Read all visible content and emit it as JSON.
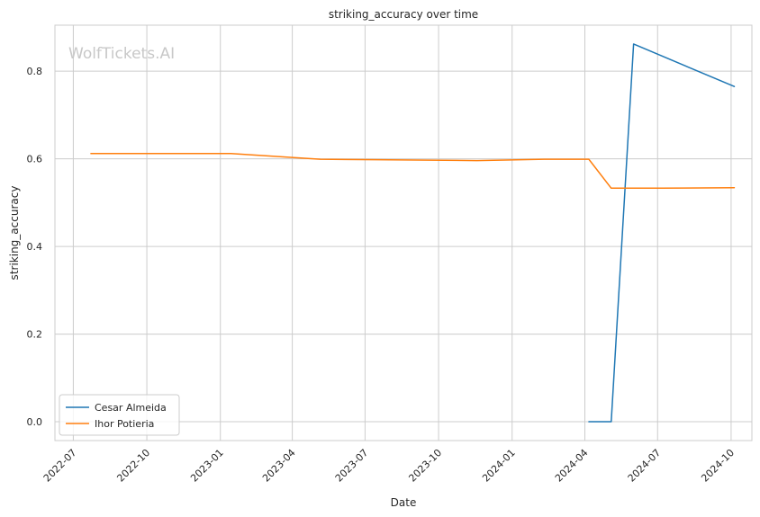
{
  "chart_data": {
    "type": "line",
    "title": "striking_accuracy over time",
    "xlabel": "Date",
    "ylabel": "striking_accuracy",
    "watermark": "WolfTickets.AI",
    "x_tick_labels": [
      "2022-07",
      "2022-10",
      "2023-01",
      "2023-04",
      "2023-07",
      "2023-10",
      "2024-01",
      "2024-04",
      "2024-07",
      "2024-10"
    ],
    "y_tick_labels": [
      "0.0",
      "0.2",
      "0.4",
      "0.6",
      "0.8"
    ],
    "xlim": [
      "2022-06-08",
      "2024-10-27"
    ],
    "ylim": [
      -0.043,
      0.905
    ],
    "grid": true,
    "legend_position": "lower-left",
    "series": [
      {
        "name": "Cesar Almeida",
        "color": "#1f77b4",
        "points": [
          {
            "x": "2024-04-06",
            "y": 0.0
          },
          {
            "x": "2024-05-04",
            "y": 0.0
          },
          {
            "x": "2024-06-01",
            "y": 0.862
          },
          {
            "x": "2024-10-05",
            "y": 0.765
          }
        ]
      },
      {
        "name": "Ihor Potieria",
        "color": "#ff7f0e",
        "points": [
          {
            "x": "2022-07-23",
            "y": 0.612
          },
          {
            "x": "2023-01-14",
            "y": 0.612
          },
          {
            "x": "2023-05-06",
            "y": 0.599
          },
          {
            "x": "2023-07-15",
            "y": 0.598
          },
          {
            "x": "2023-11-18",
            "y": 0.596
          },
          {
            "x": "2024-02-10",
            "y": 0.599
          },
          {
            "x": "2024-04-06",
            "y": 0.599
          },
          {
            "x": "2024-05-04",
            "y": 0.533
          },
          {
            "x": "2024-07-06",
            "y": 0.533
          },
          {
            "x": "2024-10-05",
            "y": 0.534
          }
        ]
      }
    ]
  }
}
